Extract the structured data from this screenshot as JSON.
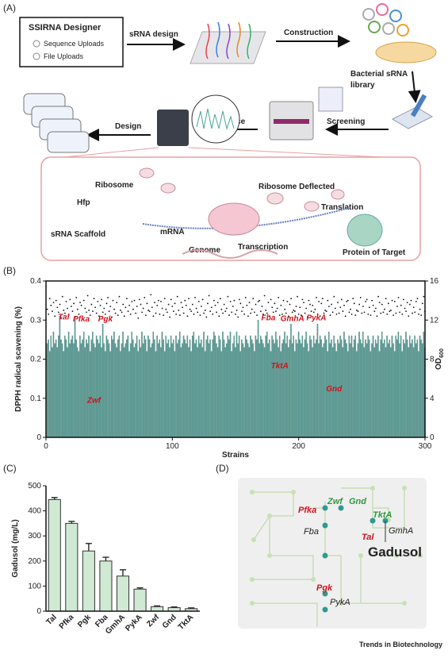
{
  "panel_labels": [
    "(A)",
    "(B)",
    "(C)",
    "(D)"
  ],
  "panel_a": {
    "designer_title": "SSIRNA Designer",
    "designer_options": [
      "Sequence Uploads",
      "File Uploads"
    ],
    "steps": {
      "srna_design": "sRNA design",
      "construction": "Construction",
      "library": [
        "Bacterial sRNA",
        "library"
      ],
      "screening": "Screening",
      "sequence": "Sequence",
      "design": "Design"
    },
    "inset": {
      "ribosome": "Ribosome",
      "hfp": "Hfp",
      "scaffold": "sRNA Scaffold",
      "mrna": "mRNA",
      "genome": "Genome",
      "transcription": "Transcription",
      "deflected": "Ribosome Deflected",
      "translation": "Translation",
      "protein": "Protein of Target"
    }
  },
  "chart_data": [
    {
      "type": "bar_scatter",
      "xlabel": "Strains",
      "ylabel": "DPPH radical scavening (%)",
      "y2label": {
        "text": "OD",
        "subscript": "600"
      },
      "xlim": [
        0,
        300
      ],
      "xticks": [
        0,
        100,
        200,
        300
      ],
      "ylim": [
        0,
        0.4
      ],
      "yticks": [
        0,
        0.1,
        0.2,
        0.3,
        0.4
      ],
      "y2lim": [
        0,
        16
      ],
      "y2ticks": [
        0,
        4,
        8,
        12,
        16
      ],
      "series": [
        {
          "color": "#5f9e97",
          "axis": "y",
          "values": [
            0.24,
            0.25,
            0.22,
            0.26,
            0.23,
            0.27,
            0.24,
            0.25,
            0.23,
            0.26,
            0.31,
            0.25,
            0.24,
            0.22,
            0.26,
            0.25,
            0.23,
            0.27,
            0.24,
            0.25,
            0.26,
            0.24,
            0.3,
            0.25,
            0.23,
            0.22,
            0.26,
            0.24,
            0.25,
            0.27,
            0.23,
            0.25,
            0.24,
            0.26,
            0.22,
            0.25,
            0.27,
            0.24,
            0.23,
            0.26,
            0.25,
            0.24,
            0.26,
            0.23,
            0.29,
            0.24,
            0.22,
            0.26,
            0.25,
            0.24,
            0.22,
            0.26,
            0.25,
            0.27,
            0.24,
            0.23,
            0.25,
            0.26,
            0.22,
            0.24,
            0.27,
            0.23,
            0.24,
            0.25,
            0.26,
            0.22,
            0.24,
            0.27,
            0.25,
            0.23,
            0.24,
            0.26,
            0.22,
            0.25,
            0.23,
            0.27,
            0.24,
            0.26,
            0.25,
            0.22,
            0.26,
            0.25,
            0.23,
            0.24,
            0.27,
            0.25,
            0.22,
            0.26,
            0.24,
            0.25,
            0.23,
            0.27,
            0.25,
            0.22,
            0.26,
            0.24,
            0.25,
            0.23,
            0.26,
            0.24,
            0.25,
            0.22,
            0.26,
            0.24,
            0.25,
            0.27,
            0.23,
            0.24,
            0.26,
            0.25,
            0.24,
            0.26,
            0.23,
            0.25,
            0.22,
            0.26,
            0.27,
            0.24,
            0.25,
            0.23,
            0.26,
            0.24,
            0.25,
            0.23,
            0.27,
            0.22,
            0.25,
            0.26,
            0.24,
            0.25,
            0.22,
            0.25,
            0.27,
            0.26,
            0.24,
            0.23,
            0.26,
            0.25,
            0.22,
            0.27,
            0.25,
            0.23,
            0.24,
            0.26,
            0.25,
            0.27,
            0.22,
            0.24,
            0.26,
            0.23,
            0.27,
            0.24,
            0.26,
            0.22,
            0.25,
            0.24,
            0.23,
            0.26,
            0.25,
            0.24,
            0.23,
            0.26,
            0.25,
            0.24,
            0.22,
            0.26,
            0.25,
            0.3,
            0.24,
            0.26,
            0.25,
            0.24,
            0.23,
            0.26,
            0.27,
            0.24,
            0.25,
            0.22,
            0.26,
            0.25,
            0.24,
            0.27,
            0.25,
            0.23,
            0.26,
            0.22,
            0.24,
            0.25,
            0.27,
            0.24,
            0.26,
            0.23,
            0.25,
            0.29,
            0.24,
            0.26,
            0.22,
            0.25,
            0.24,
            0.27,
            0.25,
            0.24,
            0.26,
            0.23,
            0.25,
            0.27,
            0.24,
            0.22,
            0.26,
            0.25,
            0.23,
            0.26,
            0.24,
            0.25,
            0.29,
            0.24,
            0.26,
            0.25,
            0.23,
            0.24,
            0.26,
            0.25,
            0.22,
            0.27,
            0.24,
            0.25,
            0.23,
            0.26,
            0.24,
            0.22,
            0.25,
            0.24,
            0.26,
            0.25,
            0.23,
            0.27,
            0.25,
            0.24,
            0.22,
            0.26,
            0.24,
            0.26,
            0.23,
            0.25,
            0.26,
            0.22,
            0.24,
            0.27,
            0.25,
            0.24,
            0.27,
            0.23,
            0.25,
            0.24,
            0.26,
            0.25,
            0.22,
            0.24,
            0.26,
            0.23,
            0.25,
            0.24,
            0.26,
            0.22,
            0.25,
            0.27,
            0.24,
            0.25,
            0.23,
            0.26,
            0.24,
            0.25,
            0.23,
            0.26,
            0.24,
            0.22,
            0.26,
            0.25,
            0.27,
            0.24,
            0.26,
            0.22,
            0.25,
            0.24,
            0.27,
            0.25,
            0.23,
            0.26,
            0.24,
            0.25,
            0.23,
            0.26,
            0.24,
            0.25,
            0.22,
            0.26,
            0.25,
            0.24,
            0.27,
            0.23
          ]
        },
        {
          "color": "#111111",
          "axis": "y2",
          "values": [
            13.1,
            12.6,
            14.2,
            13.5,
            12.9,
            13.8,
            12.4,
            14.0,
            13.3,
            12.8,
            13.6,
            12.2,
            14.4,
            13.0,
            12.7,
            13.9,
            13.2,
            12.5,
            14.1,
            13.4,
            12.9,
            13.7,
            12.3,
            14.3,
            13.1,
            12.6,
            13.8,
            13.5,
            12.4,
            14.0,
            13.2,
            12.8,
            14.5,
            13.0,
            12.5,
            13.6,
            12.9,
            14.2,
            13.3,
            12.7,
            13.9,
            12.4,
            13.5,
            14.1,
            12.8,
            13.2,
            12.6,
            13.7,
            14.3,
            12.9,
            13.4,
            12.3,
            14.0,
            13.1,
            12.7,
            13.8,
            12.5,
            14.4,
            13.0,
            12.8,
            13.6,
            12.4,
            13.3,
            14.2,
            12.9,
            13.5,
            12.6,
            13.9,
            13.1,
            14.0,
            12.7,
            13.4,
            12.2,
            14.1,
            13.6,
            12.8,
            13.2,
            14.3,
            12.5,
            13.7,
            13.0,
            12.9,
            14.6,
            13.3,
            12.4,
            13.8,
            12.7,
            13.5,
            14.0,
            12.6,
            13.9,
            13.2,
            12.5,
            14.2,
            13.1,
            12.8,
            13.6,
            12.3,
            14.1,
            13.4,
            12.9,
            13.7,
            12.6,
            14.4,
            13.0,
            12.5,
            13.8,
            13.3,
            12.7,
            14.0,
            13.5,
            12.4,
            14.2,
            13.1,
            12.9,
            13.6,
            12.6,
            14.3,
            13.2,
            12.8,
            13.9,
            12.5,
            13.4,
            14.1,
            12.7,
            13.0,
            12.3,
            13.7,
            14.5,
            12.9,
            13.3,
            12.6,
            14.0,
            13.5,
            12.8,
            13.8,
            12.4,
            14.2,
            13.1,
            12.7,
            13.6,
            12.9,
            13.2,
            14.4,
            12.5,
            13.9,
            12.8,
            13.4,
            14.0,
            12.6,
            13.0,
            12.3,
            14.1,
            13.7,
            12.9,
            13.3,
            12.6,
            14.3,
            13.5,
            12.4,
            13.8,
            12.7,
            13.1,
            14.2,
            12.8,
            13.6,
            12.5,
            13.9,
            14.0,
            12.9,
            13.4,
            12.6,
            14.5,
            13.0,
            12.7,
            13.8,
            12.4,
            14.1,
            13.3,
            12.8,
            13.7,
            12.9,
            13.2,
            14.3,
            12.5,
            13.5,
            12.6,
            14.0,
            13.1,
            12.7,
            13.9,
            12.4,
            13.6,
            14.2,
            12.8,
            13.0,
            12.9,
            13.4,
            14.4,
            12.6,
            13.3,
            12.5,
            14.1,
            13.8,
            12.7,
            13.2,
            12.3,
            14.0,
            13.6,
            12.9,
            13.5,
            12.8,
            13.1,
            14.3,
            12.6,
            13.9,
            12.4,
            13.7,
            14.2,
            12.7,
            13.0,
            12.9,
            14.0,
            13.4,
            12.5,
            13.6,
            12.8,
            14.4,
            13.2,
            12.6,
            13.8,
            12.7,
            13.3,
            14.1,
            12.9,
            13.5,
            12.4,
            13.9,
            14.0,
            12.8,
            13.1,
            12.6,
            14.2,
            13.7,
            12.5,
            13.0,
            12.9,
            13.6,
            14.3,
            12.7,
            13.4,
            12.8,
            13.9,
            14.1,
            12.6,
            13.3,
            12.5,
            14.0,
            13.5,
            12.9,
            13.2,
            12.4,
            14.4,
            13.8,
            12.7,
            13.6,
            12.8,
            13.1,
            14.2,
            12.6,
            13.7,
            12.9,
            13.0,
            14.0,
            12.5,
            13.9,
            12.7,
            13.4,
            14.3,
            12.8,
            13.5,
            12.6,
            14.1,
            13.2,
            12.9,
            13.8,
            12.4,
            13.6,
            14.0,
            12.7,
            13.3,
            12.8,
            13.9,
            14.2,
            12.6,
            13.1,
            12.5,
            13.7,
            14.4,
            12.9
          ]
        }
      ],
      "annotations": [
        {
          "text": "Tal",
          "x": 14,
          "y": 0.302
        },
        {
          "text": "Pfka",
          "x": 28,
          "y": 0.296
        },
        {
          "text": "Pgk",
          "x": 47,
          "y": 0.296
        },
        {
          "text": "Zwf",
          "x": 38,
          "y": 0.088
        },
        {
          "text": "Fba",
          "x": 176,
          "y": 0.3
        },
        {
          "text": "GmhA",
          "x": 195,
          "y": 0.297
        },
        {
          "text": "PykA",
          "x": 214,
          "y": 0.3
        },
        {
          "text": "TktA",
          "x": 185,
          "y": 0.177
        },
        {
          "text": "Gnd",
          "x": 228,
          "y": 0.118
        }
      ]
    },
    {
      "type": "bar",
      "ylabel": "Gadusol (mg/L)",
      "categories": [
        "Tal",
        "Pfka",
        "Pgk",
        "Fba",
        "GmhA",
        "PykA",
        "Zwf",
        "Gnd",
        "TktA"
      ],
      "values": [
        445,
        350,
        240,
        200,
        140,
        88,
        18,
        14,
        10
      ],
      "errors": [
        8,
        8,
        30,
        15,
        25,
        5,
        3,
        3,
        3
      ],
      "color": "#cfe9d3",
      "edgecolor": "#333333",
      "ylim": [
        0,
        500
      ],
      "yticks": [
        0,
        100,
        200,
        300,
        400,
        500
      ]
    }
  ],
  "panel_d": {
    "zwf": "Zwf",
    "gnd": "Gnd",
    "pfka": "Pfka",
    "tkta": "TktA",
    "fba": "Fba",
    "tal": "Tal",
    "gmha": "GmhA",
    "gadusol": "Gadusol",
    "pgk": "Pgk",
    "pyka": "PykA"
  },
  "footer": "Trends in Biotechnology"
}
